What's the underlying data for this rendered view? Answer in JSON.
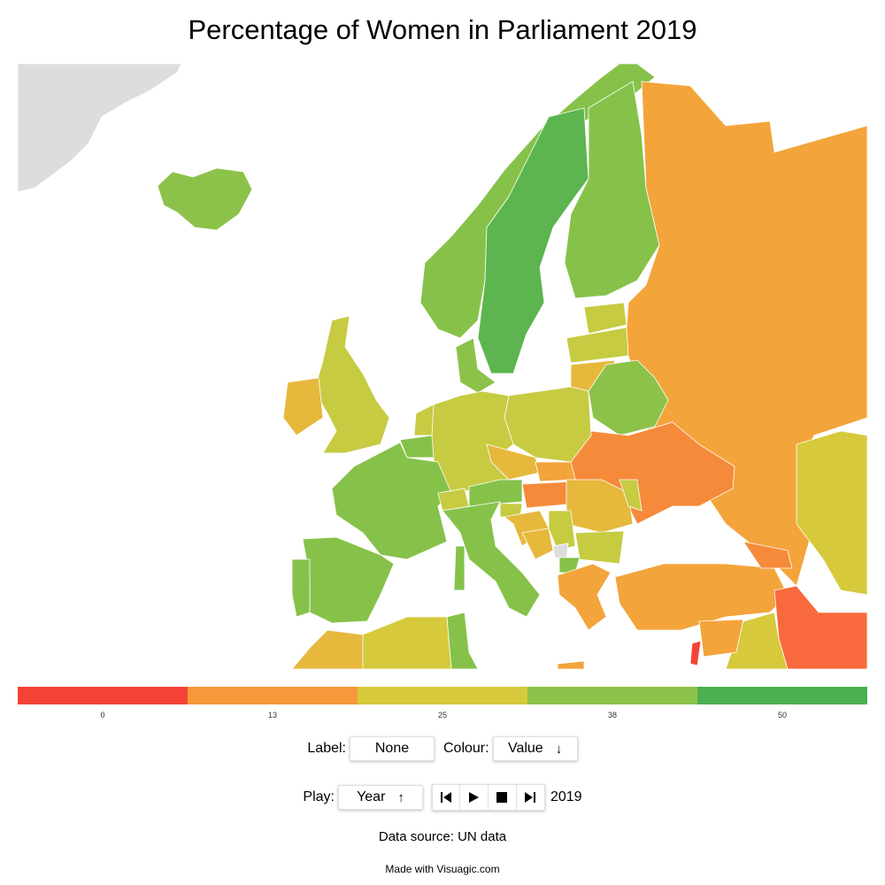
{
  "title": "Percentage of Women in Parliament 2019",
  "map_data": {
    "type": "choropleth",
    "region": "Europe",
    "regions": [
      {
        "name": "Iceland",
        "band": 38
      },
      {
        "name": "Norway",
        "band": 38
      },
      {
        "name": "Sweden",
        "band": 50
      },
      {
        "name": "Finland",
        "band": 38
      },
      {
        "name": "Denmark",
        "band": 38
      },
      {
        "name": "Estonia",
        "band": 25
      },
      {
        "name": "Latvia",
        "band": 25
      },
      {
        "name": "Lithuania",
        "band": 25
      },
      {
        "name": "Russia",
        "band": 13
      },
      {
        "name": "Belarus",
        "band": 38
      },
      {
        "name": "Ukraine",
        "band": 13
      },
      {
        "name": "Poland",
        "band": 25
      },
      {
        "name": "Germany",
        "band": 25
      },
      {
        "name": "Netherlands",
        "band": 25
      },
      {
        "name": "Belgium",
        "band": 38
      },
      {
        "name": "France",
        "band": 38
      },
      {
        "name": "United Kingdom",
        "band": 25
      },
      {
        "name": "Ireland",
        "band": 13
      },
      {
        "name": "Spain",
        "band": 38
      },
      {
        "name": "Portugal",
        "band": 38
      },
      {
        "name": "Switzerland",
        "band": 25
      },
      {
        "name": "Austria",
        "band": 38
      },
      {
        "name": "Czechia",
        "band": 25
      },
      {
        "name": "Slovakia",
        "band": 13
      },
      {
        "name": "Hungary",
        "band": 13
      },
      {
        "name": "Romania",
        "band": 13
      },
      {
        "name": "Moldova",
        "band": 25
      },
      {
        "name": "Italy",
        "band": 38
      },
      {
        "name": "Slovenia",
        "band": 25
      },
      {
        "name": "Croatia",
        "band": 13
      },
      {
        "name": "Bosnia and Herzegovina",
        "band": 13
      },
      {
        "name": "Serbia",
        "band": 25
      },
      {
        "name": "North Macedonia",
        "band": 38
      },
      {
        "name": "Bulgaria",
        "band": 25
      },
      {
        "name": "Greece",
        "band": 13
      },
      {
        "name": "Turkey",
        "band": 13
      },
      {
        "name": "Georgia",
        "band": 13
      },
      {
        "name": "Kazakhstan",
        "band": 25
      },
      {
        "name": "Iran",
        "band": 0
      },
      {
        "name": "Syria",
        "band": 13
      },
      {
        "name": "Iraq",
        "band": 25
      },
      {
        "name": "Lebanon",
        "band": 0
      },
      {
        "name": "Algeria",
        "band": 25
      },
      {
        "name": "Tunisia",
        "band": 38
      },
      {
        "name": "Morocco",
        "band": 13
      },
      {
        "name": "Greenland",
        "band": null
      },
      {
        "name": "Kosovo",
        "band": null
      }
    ]
  },
  "colors": {
    "band_0": "#f44336",
    "band_13": "#f5993a",
    "band_25": "#d6c93c",
    "band_38": "#8dc24a",
    "band_50": "#4caf50",
    "no_data": "#dddddd",
    "map_fill_0": "#f86a3d",
    "map_fill_13": "#f3a43a",
    "map_fill_13b": "#f58b3a",
    "map_fill_25": "#c6cb42",
    "map_fill_38": "#86c24a",
    "map_fill_50": "#5cb54f",
    "map_fill_25b": "#e6b83c"
  },
  "legend": {
    "bands": [
      {
        "label": "0",
        "color": "#f44336"
      },
      {
        "label": "13",
        "color": "#f5993a"
      },
      {
        "label": "25",
        "color": "#d6c93c"
      },
      {
        "label": "38",
        "color": "#8dc24a"
      },
      {
        "label": "50",
        "color": "#4caf50"
      }
    ]
  },
  "controls": {
    "label_text": "Label:",
    "label_value": "None",
    "colour_text": "Colour:",
    "colour_value": "Value",
    "play_text": "Play:",
    "play_value": "Year",
    "year": "2019",
    "icons": {
      "colour_sort": "arrow-down-icon",
      "play_sort": "arrow-up-icon",
      "first": "skip-previous-icon",
      "play": "play-icon",
      "stop": "stop-icon",
      "last": "skip-next-icon"
    }
  },
  "footer": {
    "source": "Data source: UN data",
    "made_with": "Made with Visuagic.com"
  }
}
